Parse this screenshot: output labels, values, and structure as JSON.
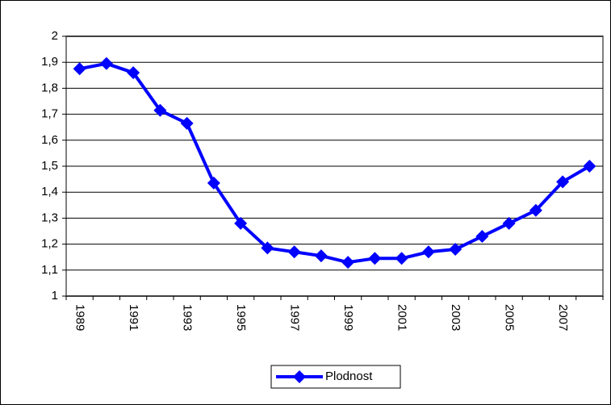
{
  "chart_data": {
    "type": "line",
    "categories": [
      "1989",
      null,
      "1991",
      null,
      "1993",
      null,
      "1995",
      null,
      "1997",
      null,
      "1999",
      null,
      "2001",
      null,
      "2003",
      null,
      "2005",
      null,
      "2007",
      null
    ],
    "series": [
      {
        "name": "Plodnost",
        "color": "#0000ff",
        "values": [
          1.875,
          1.895,
          1.86,
          1.715,
          1.665,
          1.435,
          1.28,
          1.185,
          1.17,
          1.155,
          1.13,
          1.145,
          1.145,
          1.17,
          1.18,
          1.23,
          1.28,
          1.33,
          1.44,
          1.5
        ]
      }
    ],
    "ylim": [
      1,
      2
    ],
    "yticks": [
      1,
      {
        "value": 1.1,
        "label": "1,1"
      },
      {
        "value": 1.2,
        "label": "1,2"
      },
      {
        "value": 1.3,
        "label": "1,3"
      },
      {
        "value": 1.4,
        "label": "1,4"
      },
      {
        "value": 1.5,
        "label": "1,5"
      },
      {
        "value": 1.6,
        "label": "1,6"
      },
      {
        "value": 1.7,
        "label": "1,7"
      },
      {
        "value": 1.8,
        "label": "1,8"
      },
      {
        "value": 1.9,
        "label": "1,9"
      },
      2
    ],
    "grid": true,
    "legend": "bottom"
  }
}
